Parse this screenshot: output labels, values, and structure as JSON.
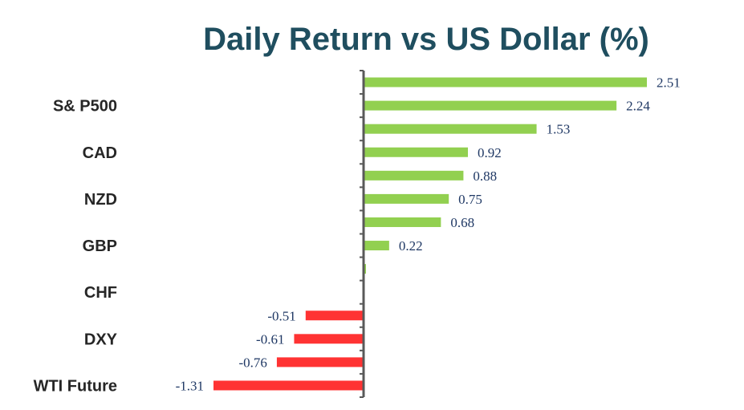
{
  "colors": {
    "positive": "#92d050",
    "negative": "#ff3333",
    "axis": "#595959",
    "title": "#1f4e5f",
    "label": "#1f3864"
  },
  "chart_data": {
    "type": "bar",
    "orientation": "horizontal",
    "title": "Daily Return vs US Dollar (%)",
    "categories": [
      "",
      "S& P500",
      "",
      "CAD",
      "",
      "NZD",
      "",
      "GBP",
      "",
      "CHF",
      "",
      "DXY",
      "",
      "WTI Future"
    ],
    "values": [
      2.51,
      2.24,
      1.53,
      0.92,
      0.88,
      0.75,
      0.68,
      0.22,
      0.01,
      0,
      -0.51,
      -0.61,
      -0.76,
      -1.31
    ],
    "data_labels": [
      "2.51",
      "2.24",
      "1.53",
      "0.92",
      "0.88",
      "0.75",
      "0.68",
      "0.22",
      "",
      "",
      "-0.51",
      "-0.61",
      "-0.76",
      "-1.31"
    ],
    "xlim": [
      -1.31,
      2.51
    ],
    "grid": false,
    "legend": "none"
  }
}
